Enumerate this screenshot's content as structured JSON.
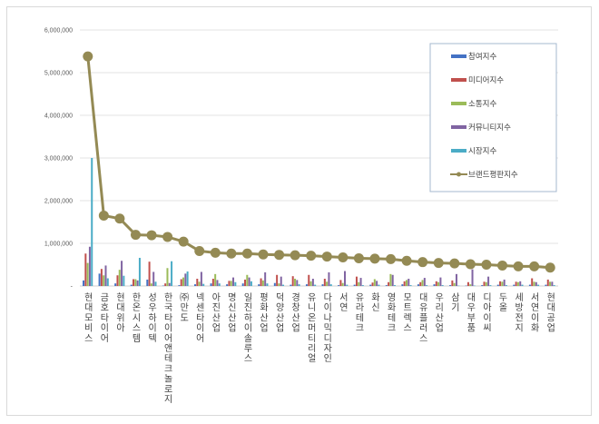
{
  "chart_data": {
    "type": "bar",
    "title": "",
    "xlabel": "",
    "ylabel": "",
    "ylim": [
      0,
      6000000
    ],
    "yticks": [
      "-",
      "1,000,000",
      "2,000,000",
      "3,000,000",
      "4,000,000",
      "5,000,000",
      "6,000,000"
    ],
    "grid": true,
    "legend_position": "upper-right-inside",
    "categories": [
      "현대모비스",
      "금호타이어",
      "현대위아",
      "한온시스템",
      "성우하이텍",
      "한국타이어앤테크놀로지",
      "㈜만도",
      "넥센타이어",
      "아진산업",
      "명신산업",
      "일진하이솔루스",
      "평화산업",
      "덕양산업",
      "경창산업",
      "유니온머티리얼",
      "다이나믹디자인",
      "서연",
      "유라테크",
      "화신",
      "영화테크",
      "모트렉스",
      "대유플러스",
      "우리산업",
      "삼기",
      "대우부품",
      "디아이씨",
      "두올",
      "세방전지",
      "서연이화",
      "현대공업"
    ],
    "series": [
      {
        "name": "참여지수",
        "color": "#4472c4",
        "kind": "bar",
        "values": [
          130000,
          290000,
          60000,
          30000,
          150000,
          10000,
          20000,
          40000,
          60000,
          40000,
          60000,
          40000,
          70000,
          30000,
          40000,
          40000,
          20000,
          30000,
          30000,
          20000,
          40000,
          40000,
          40000,
          20000,
          10000,
          20000,
          30000,
          30000,
          30000,
          30000
        ]
      },
      {
        "name": "미디어지수",
        "color": "#c0504d",
        "kind": "bar",
        "values": [
          760000,
          400000,
          250000,
          160000,
          570000,
          60000,
          160000,
          170000,
          170000,
          120000,
          150000,
          180000,
          260000,
          230000,
          260000,
          170000,
          140000,
          220000,
          80000,
          90000,
          110000,
          90000,
          110000,
          130000,
          90000,
          100000,
          110000,
          100000,
          180000,
          150000
        ]
      },
      {
        "name": "소통지수",
        "color": "#9bbb59",
        "kind": "bar",
        "values": [
          540000,
          250000,
          380000,
          160000,
          60000,
          420000,
          200000,
          100000,
          280000,
          120000,
          260000,
          130000,
          60000,
          170000,
          110000,
          100000,
          70000,
          90000,
          160000,
          280000,
          140000,
          140000,
          90000,
          70000,
          40000,
          90000,
          100000,
          90000,
          100000,
          100000
        ]
      },
      {
        "name": "커뮤니티지수",
        "color": "#8064a2",
        "kind": "bar",
        "values": [
          920000,
          480000,
          590000,
          130000,
          330000,
          70000,
          290000,
          330000,
          140000,
          200000,
          200000,
          320000,
          220000,
          140000,
          170000,
          320000,
          350000,
          190000,
          120000,
          260000,
          170000,
          190000,
          200000,
          280000,
          390000,
          220000,
          150000,
          110000,
          90000,
          100000
        ]
      },
      {
        "name": "시장지수",
        "color": "#4bacc6",
        "kind": "bar",
        "values": [
          3000000,
          180000,
          240000,
          660000,
          100000,
          580000,
          340000,
          50000,
          60000,
          90000,
          110000,
          60000,
          30000,
          40000,
          30000,
          40000,
          30000,
          20000,
          30000,
          20000,
          20000,
          20000,
          20000,
          10000,
          10000,
          20000,
          20000,
          30000,
          30000,
          20000
        ]
      },
      {
        "name": "브랜드평판지수",
        "color": "#948a54",
        "kind": "line",
        "values": [
          5380000,
          1650000,
          1580000,
          1200000,
          1190000,
          1150000,
          1040000,
          820000,
          780000,
          760000,
          760000,
          740000,
          730000,
          720000,
          710000,
          690000,
          670000,
          650000,
          640000,
          630000,
          590000,
          560000,
          540000,
          530000,
          510000,
          500000,
          480000,
          460000,
          460000,
          430000
        ]
      }
    ]
  }
}
